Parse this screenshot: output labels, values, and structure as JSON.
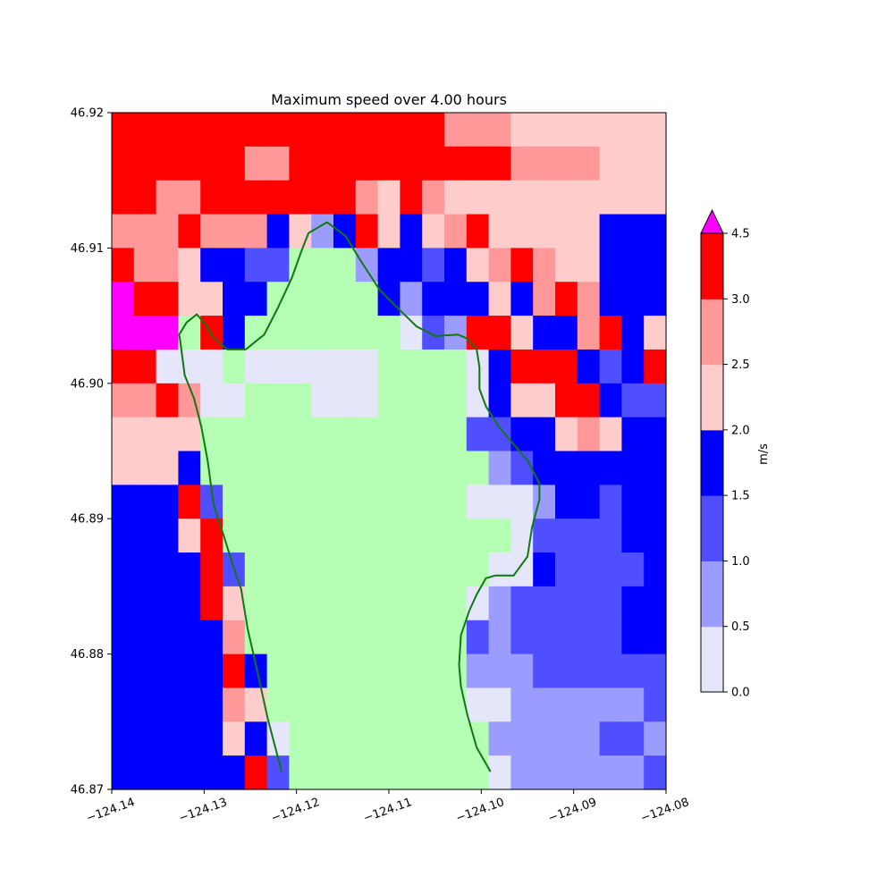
{
  "chart_data": {
    "type": "heatmap",
    "title": "Maximum speed over 4.00 hours",
    "xlim": [
      -124.14,
      -124.08
    ],
    "ylim": [
      46.87,
      46.92
    ],
    "x_ticks": [
      {
        "value": -124.14,
        "label": "−124.14"
      },
      {
        "value": -124.13,
        "label": "−124.13"
      },
      {
        "value": -124.12,
        "label": "−124.12"
      },
      {
        "value": -124.11,
        "label": "−124.11"
      },
      {
        "value": -124.1,
        "label": "−124.10"
      },
      {
        "value": -124.09,
        "label": "−124.09"
      },
      {
        "value": -124.08,
        "label": "−124.08"
      }
    ],
    "y_ticks": [
      {
        "value": 46.87,
        "label": "46.87"
      },
      {
        "value": 46.88,
        "label": "46.88"
      },
      {
        "value": 46.89,
        "label": "46.89"
      },
      {
        "value": 46.9,
        "label": "46.90"
      },
      {
        "value": 46.91,
        "label": "46.91"
      },
      {
        "value": 46.92,
        "label": "46.92"
      }
    ],
    "grid": false,
    "colorbar": {
      "label": "m/s",
      "levels": [
        0.0,
        0.5,
        1.0,
        1.5,
        2.0,
        2.5,
        3.0,
        4.5
      ],
      "tick_labels": [
        "0.0",
        "0.5",
        "1.0",
        "1.5",
        "2.0",
        "2.5",
        "3.0",
        "4.5"
      ],
      "colors": [
        "#e6e6fa",
        "#9c9cff",
        "#4f4fff",
        "#0000ff",
        "#ffcccc",
        "#ff9999",
        "#ff0000"
      ],
      "extend_max_color": "#ff00ff"
    },
    "land_color": "#b4ffb4",
    "coastline_color": "#117711",
    "palette": {
      "L": "#e6e6fa",
      "l": "#9c9cff",
      "m": "#4f4fff",
      "B": "#0000ff",
      "P": "#ffcccc",
      "S": "#ff9999",
      "R": "#ff0000",
      "M": "#ff00ff",
      "G": "#b4ffb4"
    },
    "grid_rows_top_to_bottom": [
      "RRRRRRRRRRRRRRRSSSPPPPPPP",
      "RRRRRRSSRRRRRRRRRRSSSSPPP",
      "RRSSRRRRRRRSPRSPPPPPPPPPP",
      "SSSRSSSBPlBRPBPSRPPPPPBBB",
      "RSSPBBmmGGGlBBmBPSRSPPBBB",
      "MRRPPBBGGGGGBlBBBPBSRSBBB",
      "MMMGRBGGGGGGGLmlRRPBBSRBP",
      "RRLLLGLLLLLLGGGGLBRRRBmBR",
      "SSRSLLGGGLLLGGGGLBPPRRBmm",
      "PPPPGGGGGGGGGGGGmmBBPSPBB",
      "PPPBGGGGGGGGGGGGGlmBBBBBB",
      "BBBRmGGGGGGGGGGGLLLlBBmBB",
      "BBBPRGGGGGGGGGGGGGLmmmmBB",
      "BBBBRmGGGGGGGGGGGLLBmmmmB",
      "BBBBRPGGGGGGGGGGLlmmmmmBB",
      "BBBBBSGGGGGGGGGGmlmmmmmBB",
      "BBBBBRBGGGGGGGGGlllmmmmmm",
      "BBBBBSPGGGGGGGGGLLllllllm",
      "BBBBBPBLGGGGGGGGGlllllmml",
      "BBBBBBRmGGGGGGGGGLllllllm"
    ],
    "coastline_west": [
      [
        -124.1216,
        46.8713
      ],
      [
        -124.1231,
        46.8752
      ],
      [
        -124.1244,
        46.8792
      ],
      [
        -124.1253,
        46.8819
      ],
      [
        -124.126,
        46.8848
      ],
      [
        -124.1269,
        46.8866
      ],
      [
        -124.128,
        46.889
      ],
      [
        -124.129,
        46.8911
      ],
      [
        -124.1296,
        46.8942
      ],
      [
        -124.1303,
        46.8968
      ],
      [
        -124.1311,
        46.8989
      ],
      [
        -124.1321,
        46.9006
      ],
      [
        -124.1326,
        46.9032
      ],
      [
        -124.1327,
        46.9036
      ],
      [
        -124.1319,
        46.9045
      ],
      [
        -124.1308,
        46.9051
      ],
      [
        -124.1299,
        46.9044
      ],
      [
        -124.129,
        46.9034
      ],
      [
        -124.1275,
        46.9025
      ],
      [
        -124.1255,
        46.9025
      ],
      [
        -124.1235,
        46.9036
      ],
      [
        -124.122,
        46.9056
      ],
      [
        -124.1205,
        46.9078
      ],
      [
        -124.1195,
        46.9097
      ],
      [
        -124.1187,
        46.9111
      ],
      [
        -124.1167,
        46.9119
      ],
      [
        -124.1147,
        46.9109
      ],
      [
        -124.113,
        46.909
      ],
      [
        -124.111,
        46.9069
      ],
      [
        -124.1085,
        46.9052
      ],
      [
        -124.107,
        46.9042
      ],
      [
        -124.105,
        46.9035
      ],
      [
        -124.1025,
        46.9036
      ],
      [
        -124.1015,
        46.9033
      ],
      [
        -124.1005,
        46.9025
      ],
      [
        -124.1002,
        46.9012
      ],
      [
        -124.1002,
        46.8996
      ],
      [
        -124.0995,
        46.8983
      ],
      [
        -124.098,
        46.8967
      ],
      [
        -124.0965,
        46.8955
      ],
      [
        -124.095,
        46.8943
      ],
      [
        -124.0937,
        46.8926
      ],
      [
        -124.0937,
        46.8914
      ],
      [
        -124.0945,
        46.8894
      ],
      [
        -124.095,
        46.8872
      ],
      [
        -124.0965,
        46.8858
      ],
      [
        -124.0985,
        46.8858
      ],
      [
        -124.0995,
        46.8856
      ],
      [
        -124.1005,
        46.8844
      ],
      [
        -124.1013,
        46.8832
      ],
      [
        -124.1022,
        46.8814
      ],
      [
        -124.1024,
        46.8792
      ],
      [
        -124.1022,
        46.8776
      ],
      [
        -124.1015,
        46.8755
      ],
      [
        -124.1005,
        46.8731
      ],
      [
        -124.099,
        46.8713
      ]
    ]
  }
}
